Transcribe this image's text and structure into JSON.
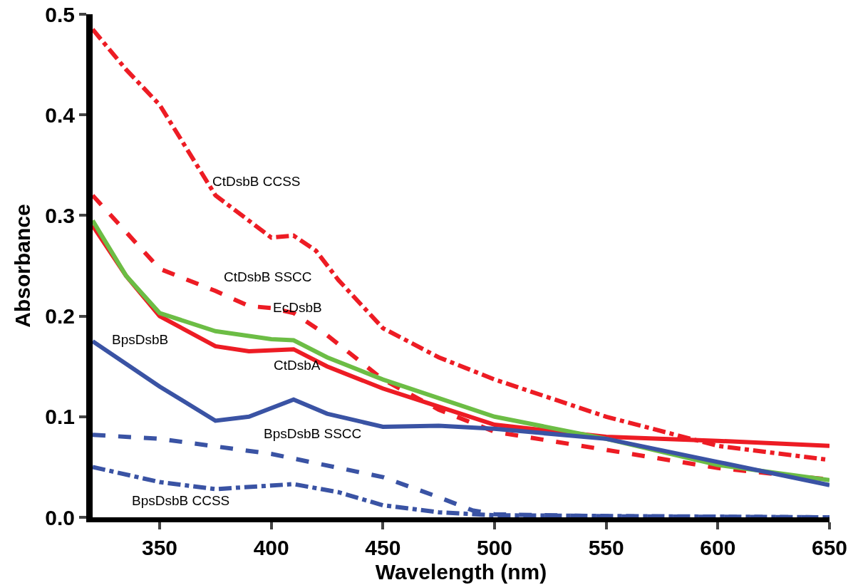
{
  "chart_data": {
    "type": "line",
    "xlabel": "Wavelength (nm)",
    "ylabel": "Absorbance",
    "xlim": [
      320,
      650
    ],
    "ylim": [
      0,
      0.5
    ],
    "xticks": [
      350,
      400,
      450,
      500,
      550,
      600,
      650
    ],
    "yticks": [
      {
        "value": 0,
        "label": "0.0"
      },
      0.1,
      0.2,
      0.3,
      0.4,
      0.5
    ],
    "grid": false,
    "marker": "none",
    "series": [
      {
        "color": "#ed1c24",
        "line_style": "dashdot",
        "x": [
          320,
          335,
          350,
          375,
          400,
          410,
          420,
          430,
          450,
          475,
          500,
          550,
          600,
          650
        ],
        "values": [
          0.485,
          0.445,
          0.41,
          0.32,
          0.278,
          0.28,
          0.265,
          0.236,
          0.188,
          0.159,
          0.137,
          0.1,
          0.071,
          0.057
        ]
      },
      {
        "color": "#ed1c24",
        "line_style": "dashed",
        "x": [
          320,
          350,
          375,
          390,
          400,
          410,
          425,
          450,
          475,
          500,
          550,
          600,
          650
        ],
        "values": [
          0.32,
          0.247,
          0.225,
          0.21,
          0.208,
          0.203,
          0.181,
          0.137,
          0.107,
          0.085,
          0.067,
          0.049,
          0.0375
        ]
      },
      {
        "color": "#ed1c24",
        "line_style": "solid",
        "x": [
          320,
          335,
          350,
          375,
          390,
          410,
          425,
          450,
          475,
          500,
          550,
          600,
          650
        ],
        "values": [
          0.29,
          0.24,
          0.2,
          0.17,
          0.165,
          0.167,
          0.15,
          0.128,
          0.11,
          0.092,
          0.08,
          0.076,
          0.071
        ]
      },
      {
        "color": "#6cbd45",
        "line_style": "solid",
        "x": [
          320,
          335,
          350,
          375,
          400,
          410,
          425,
          450,
          500,
          550,
          600,
          650
        ],
        "values": [
          0.295,
          0.24,
          0.203,
          0.185,
          0.177,
          0.176,
          0.159,
          0.137,
          0.1,
          0.078,
          0.052,
          0.037
        ]
      },
      {
        "color": "#3a53a4",
        "line_style": "solid",
        "x": [
          320,
          350,
          375,
          390,
          410,
          425,
          450,
          475,
          500,
          550,
          600,
          650
        ],
        "values": [
          0.175,
          0.13,
          0.096,
          0.1,
          0.117,
          0.103,
          0.09,
          0.091,
          0.088,
          0.078,
          0.055,
          0.032
        ]
      },
      {
        "color": "#3a53a4",
        "line_style": "dashed",
        "x": [
          320,
          350,
          400,
          450,
          475,
          490,
          500,
          550,
          650
        ],
        "values": [
          0.082,
          0.078,
          0.063,
          0.04,
          0.02,
          0.007,
          0.003,
          0.001,
          0
        ]
      },
      {
        "color": "#3a53a4",
        "line_style": "dashdot",
        "x": [
          320,
          350,
          375,
          410,
          430,
          450,
          475,
          500,
          650
        ],
        "values": [
          0.05,
          0.035,
          0.028,
          0.033,
          0.025,
          0.012,
          0.005,
          0.002,
          0
        ]
      }
    ],
    "annotations": [
      {
        "text": "CtDsbB CCSS",
        "x": 375,
        "y": 0.32
      },
      {
        "text": "CtDsbB SSCC",
        "x": 400,
        "y": 0.208
      },
      {
        "text": "EcDsbB",
        "x": 410,
        "y": 0.176
      },
      {
        "text": "CtDsbA",
        "x": 410,
        "y": 0.167
      },
      {
        "text": "BpsDsbB",
        "x": 350,
        "y": 0.13
      },
      {
        "text": "BpsDsbB SSCC",
        "x": 400,
        "y": 0.063
      },
      {
        "text": "BpsDsbB CCSS",
        "x": 350,
        "y": 0.035
      }
    ]
  }
}
